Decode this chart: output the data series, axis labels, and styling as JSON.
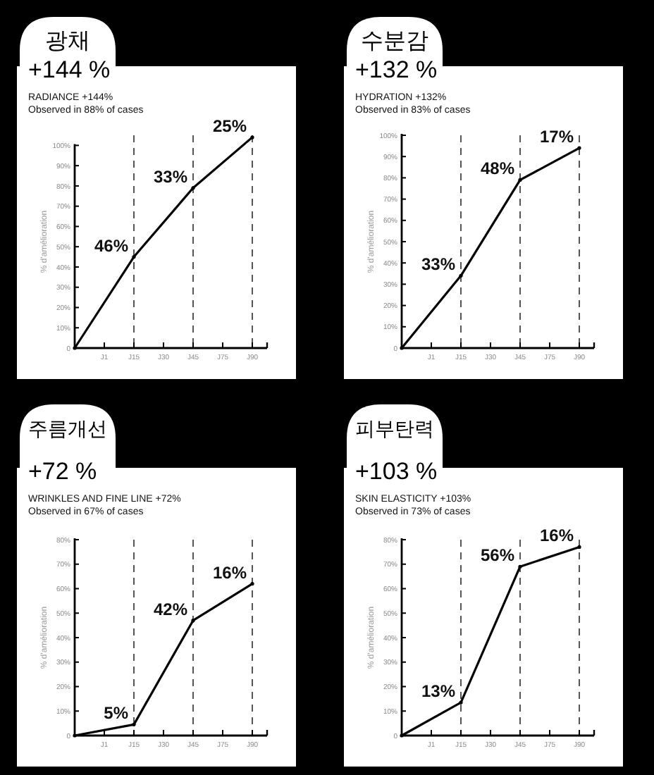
{
  "chart_data": [
    {
      "type": "line",
      "title": "광채",
      "subtitle": "+144 %",
      "ylabel": "% d'amélioration",
      "categories": [
        null,
        "J1",
        "J15",
        "J30",
        "J45",
        "J75",
        "J90"
      ],
      "values": [
        0,
        null,
        45,
        null,
        79,
        null,
        104
      ],
      "color": "#000000",
      "ylim": [
        0,
        105
      ],
      "yticks": [
        {
          "value": 0,
          "label": "0"
        },
        {
          "value": 10,
          "label": "10%"
        },
        {
          "value": 20,
          "label": "20%"
        },
        {
          "value": 30,
          "label": "30%"
        },
        {
          "value": 40,
          "label": "40%"
        },
        {
          "value": 50,
          "label": "50%"
        },
        {
          "value": 60,
          "label": "60%"
        },
        {
          "value": 70,
          "label": "70%"
        },
        {
          "value": 80,
          "label": "80%"
        },
        {
          "value": 90,
          "label": "90%"
        },
        {
          "value": 100,
          "label": "100%"
        }
      ],
      "ref_lines": [
        {
          "axis": "x",
          "value": "J15",
          "line_style": "dashed"
        },
        {
          "axis": "x",
          "value": "J45",
          "line_style": "dashed"
        },
        {
          "axis": "x",
          "value": "J90",
          "line_style": "dashed"
        }
      ],
      "annotations": [
        "RADIANCE +144%",
        "Observed in 88% of cases",
        {
          "text": "46%",
          "x": "J15",
          "y": 45
        },
        {
          "text": "33%",
          "x": "J45",
          "y": 79
        },
        {
          "text": "25%",
          "x": "J90",
          "y": 104
        }
      ]
    },
    {
      "type": "line",
      "title": "수분감",
      "subtitle": "+132 %",
      "ylabel": "% d'amélioration",
      "categories": [
        null,
        "J1",
        "J15",
        "J30",
        "J45",
        "J75",
        "J90"
      ],
      "values": [
        0,
        null,
        34,
        null,
        79,
        null,
        94
      ],
      "color": "#000000",
      "ylim": [
        0,
        100
      ],
      "yticks": [
        {
          "value": 0,
          "label": "0"
        },
        {
          "value": 10,
          "label": "10%"
        },
        {
          "value": 20,
          "label": "20%"
        },
        {
          "value": 30,
          "label": "30%"
        },
        {
          "value": 40,
          "label": "40%"
        },
        {
          "value": 50,
          "label": "50%"
        },
        {
          "value": 60,
          "label": "60%"
        },
        {
          "value": 70,
          "label": "70%"
        },
        {
          "value": 80,
          "label": "80%"
        },
        {
          "value": 90,
          "label": "90%"
        },
        {
          "value": 100,
          "label": "100%"
        }
      ],
      "ref_lines": [
        {
          "axis": "x",
          "value": "J15",
          "line_style": "dashed"
        },
        {
          "axis": "x",
          "value": "J45",
          "line_style": "dashed"
        },
        {
          "axis": "x",
          "value": "J90",
          "line_style": "dashed"
        }
      ],
      "annotations": [
        "HYDRATION +132%",
        "Observed in 83% of cases",
        {
          "text": "33%",
          "x": "J15",
          "y": 34
        },
        {
          "text": "48%",
          "x": "J45",
          "y": 79
        },
        {
          "text": "17%",
          "x": "J90",
          "y": 94
        }
      ]
    },
    {
      "type": "line",
      "title": "주름개선",
      "subtitle": "+72 %",
      "ylabel": "% d'amélioration",
      "categories": [
        null,
        "J1",
        "J15",
        "J30",
        "J45",
        "J75",
        "J90"
      ],
      "values": [
        0,
        null,
        4.5,
        null,
        47,
        null,
        62
      ],
      "color": "#000000",
      "ylim": [
        0,
        80
      ],
      "yticks": [
        {
          "value": 0,
          "label": "0"
        },
        {
          "value": 10,
          "label": "10%"
        },
        {
          "value": 20,
          "label": "20%"
        },
        {
          "value": 30,
          "label": "30%"
        },
        {
          "value": 40,
          "label": "40%"
        },
        {
          "value": 50,
          "label": "50%"
        },
        {
          "value": 60,
          "label": "60%"
        },
        {
          "value": 70,
          "label": "70%"
        },
        {
          "value": 80,
          "label": "80%"
        }
      ],
      "ref_lines": [
        {
          "axis": "x",
          "value": "J15",
          "line_style": "dashed"
        },
        {
          "axis": "x",
          "value": "J45",
          "line_style": "dashed"
        },
        {
          "axis": "x",
          "value": "J90",
          "line_style": "dashed"
        }
      ],
      "annotations": [
        "WRINKLES AND FINE LINE +72%",
        "Observed in 67% of cases",
        {
          "text": "5%",
          "x": "J15",
          "y": 4.5
        },
        {
          "text": "42%",
          "x": "J45",
          "y": 47
        },
        {
          "text": "16%",
          "x": "J90",
          "y": 62
        }
      ]
    },
    {
      "type": "line",
      "title": "피부탄력",
      "subtitle": "+103 %",
      "ylabel": "% d'amélioration",
      "categories": [
        null,
        "J1",
        "J15",
        "J30",
        "J45",
        "J75",
        "J90"
      ],
      "values": [
        0,
        null,
        13.5,
        null,
        69,
        null,
        77
      ],
      "color": "#000000",
      "ylim": [
        0,
        80
      ],
      "yticks": [
        {
          "value": 0,
          "label": "0"
        },
        {
          "value": 10,
          "label": "10%"
        },
        {
          "value": 20,
          "label": "20%"
        },
        {
          "value": 30,
          "label": "30%"
        },
        {
          "value": 40,
          "label": "40%"
        },
        {
          "value": 50,
          "label": "50%"
        },
        {
          "value": 60,
          "label": "60%"
        },
        {
          "value": 70,
          "label": "70%"
        },
        {
          "value": 80,
          "label": "80%"
        }
      ],
      "ref_lines": [
        {
          "axis": "x",
          "value": "J15",
          "line_style": "dashed"
        },
        {
          "axis": "x",
          "value": "J45",
          "line_style": "dashed"
        },
        {
          "axis": "x",
          "value": "J90",
          "line_style": "dashed"
        }
      ],
      "annotations": [
        "SKIN ELASTICITY +103%",
        "Observed in 73% of cases",
        {
          "text": "13%",
          "x": "J15",
          "y": 13.5
        },
        {
          "text": "56%",
          "x": "J45",
          "y": 69
        },
        {
          "text": "16%",
          "x": "J90",
          "y": 77
        }
      ]
    }
  ]
}
